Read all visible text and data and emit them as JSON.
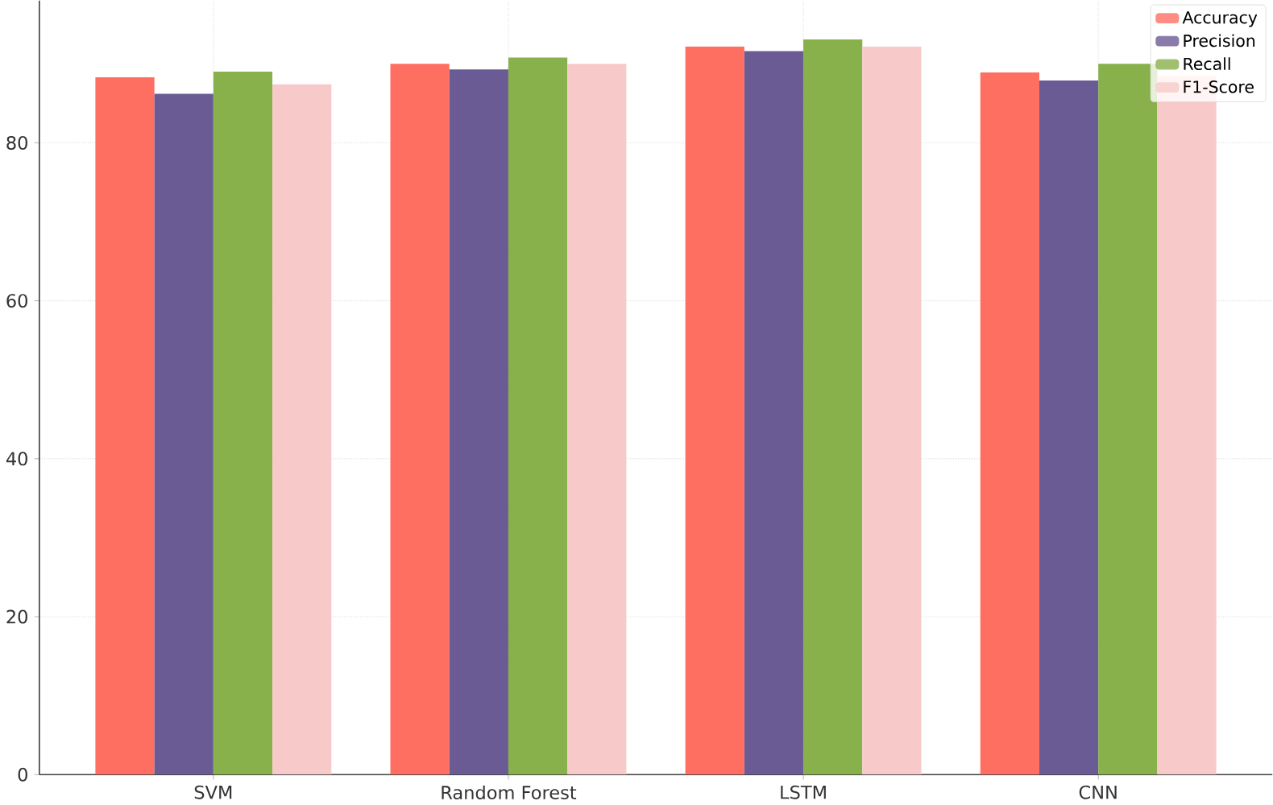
{
  "chart_data": {
    "type": "bar",
    "categories": [
      "SVM",
      "Random Forest",
      "LSTM",
      "CNN"
    ],
    "series": [
      {
        "name": "Accuracy",
        "color": "#ff6f61",
        "values": [
          88.3,
          90.0,
          92.2,
          88.9
        ]
      },
      {
        "name": "Precision",
        "color": "#6b5b95",
        "values": [
          86.2,
          89.3,
          91.6,
          87.9
        ]
      },
      {
        "name": "Recall",
        "color": "#88b04b",
        "values": [
          89.0,
          90.8,
          93.1,
          90.0
        ]
      },
      {
        "name": "F1-Score",
        "color": "#f7cac9",
        "values": [
          87.4,
          90.0,
          92.2,
          88.5
        ]
      }
    ],
    "ylim": [
      0,
      98
    ],
    "yticks": [
      0,
      20,
      40,
      60,
      80
    ],
    "grid": true,
    "legend": "top right"
  }
}
